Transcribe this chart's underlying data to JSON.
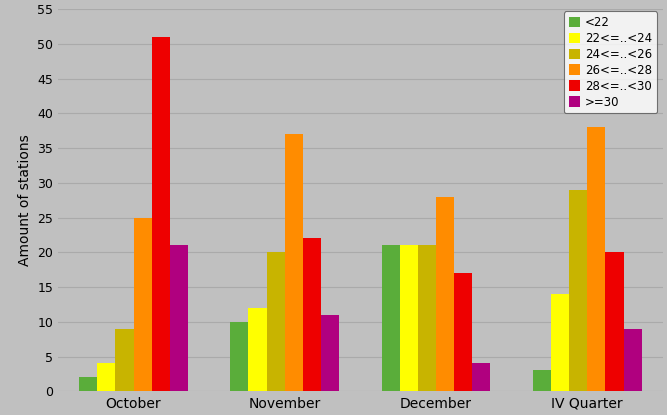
{
  "categories": [
    "October",
    "November",
    "December",
    "IV Quarter"
  ],
  "series": [
    {
      "label": "<22",
      "color": "#5aad3a",
      "values": [
        2,
        10,
        21,
        3
      ]
    },
    {
      "label": "22<=..<24",
      "color": "#ffff00",
      "values": [
        4,
        12,
        21,
        14
      ]
    },
    {
      "label": "24<=..<26",
      "color": "#c8b400",
      "values": [
        9,
        20,
        21,
        29
      ]
    },
    {
      "label": "26<=..<28",
      "color": "#ff8c00",
      "values": [
        25,
        37,
        28,
        38
      ]
    },
    {
      "label": "28<=..<30",
      "color": "#ee0000",
      "values": [
        51,
        22,
        17,
        20
      ]
    },
    {
      "label": ">=30",
      "color": "#b0007f",
      "values": [
        21,
        11,
        4,
        9
      ]
    }
  ],
  "ylabel": "Amount of stations",
  "ylim": [
    0,
    55
  ],
  "yticks": [
    0,
    5,
    10,
    15,
    20,
    25,
    30,
    35,
    40,
    45,
    50,
    55
  ],
  "background_color": "#c0c0c0",
  "plot_bg_color": "#c0c0c0",
  "grid_color": "#aaaaaa",
  "bar_width": 0.12,
  "figsize": [
    6.67,
    4.15
  ],
  "dpi": 100
}
